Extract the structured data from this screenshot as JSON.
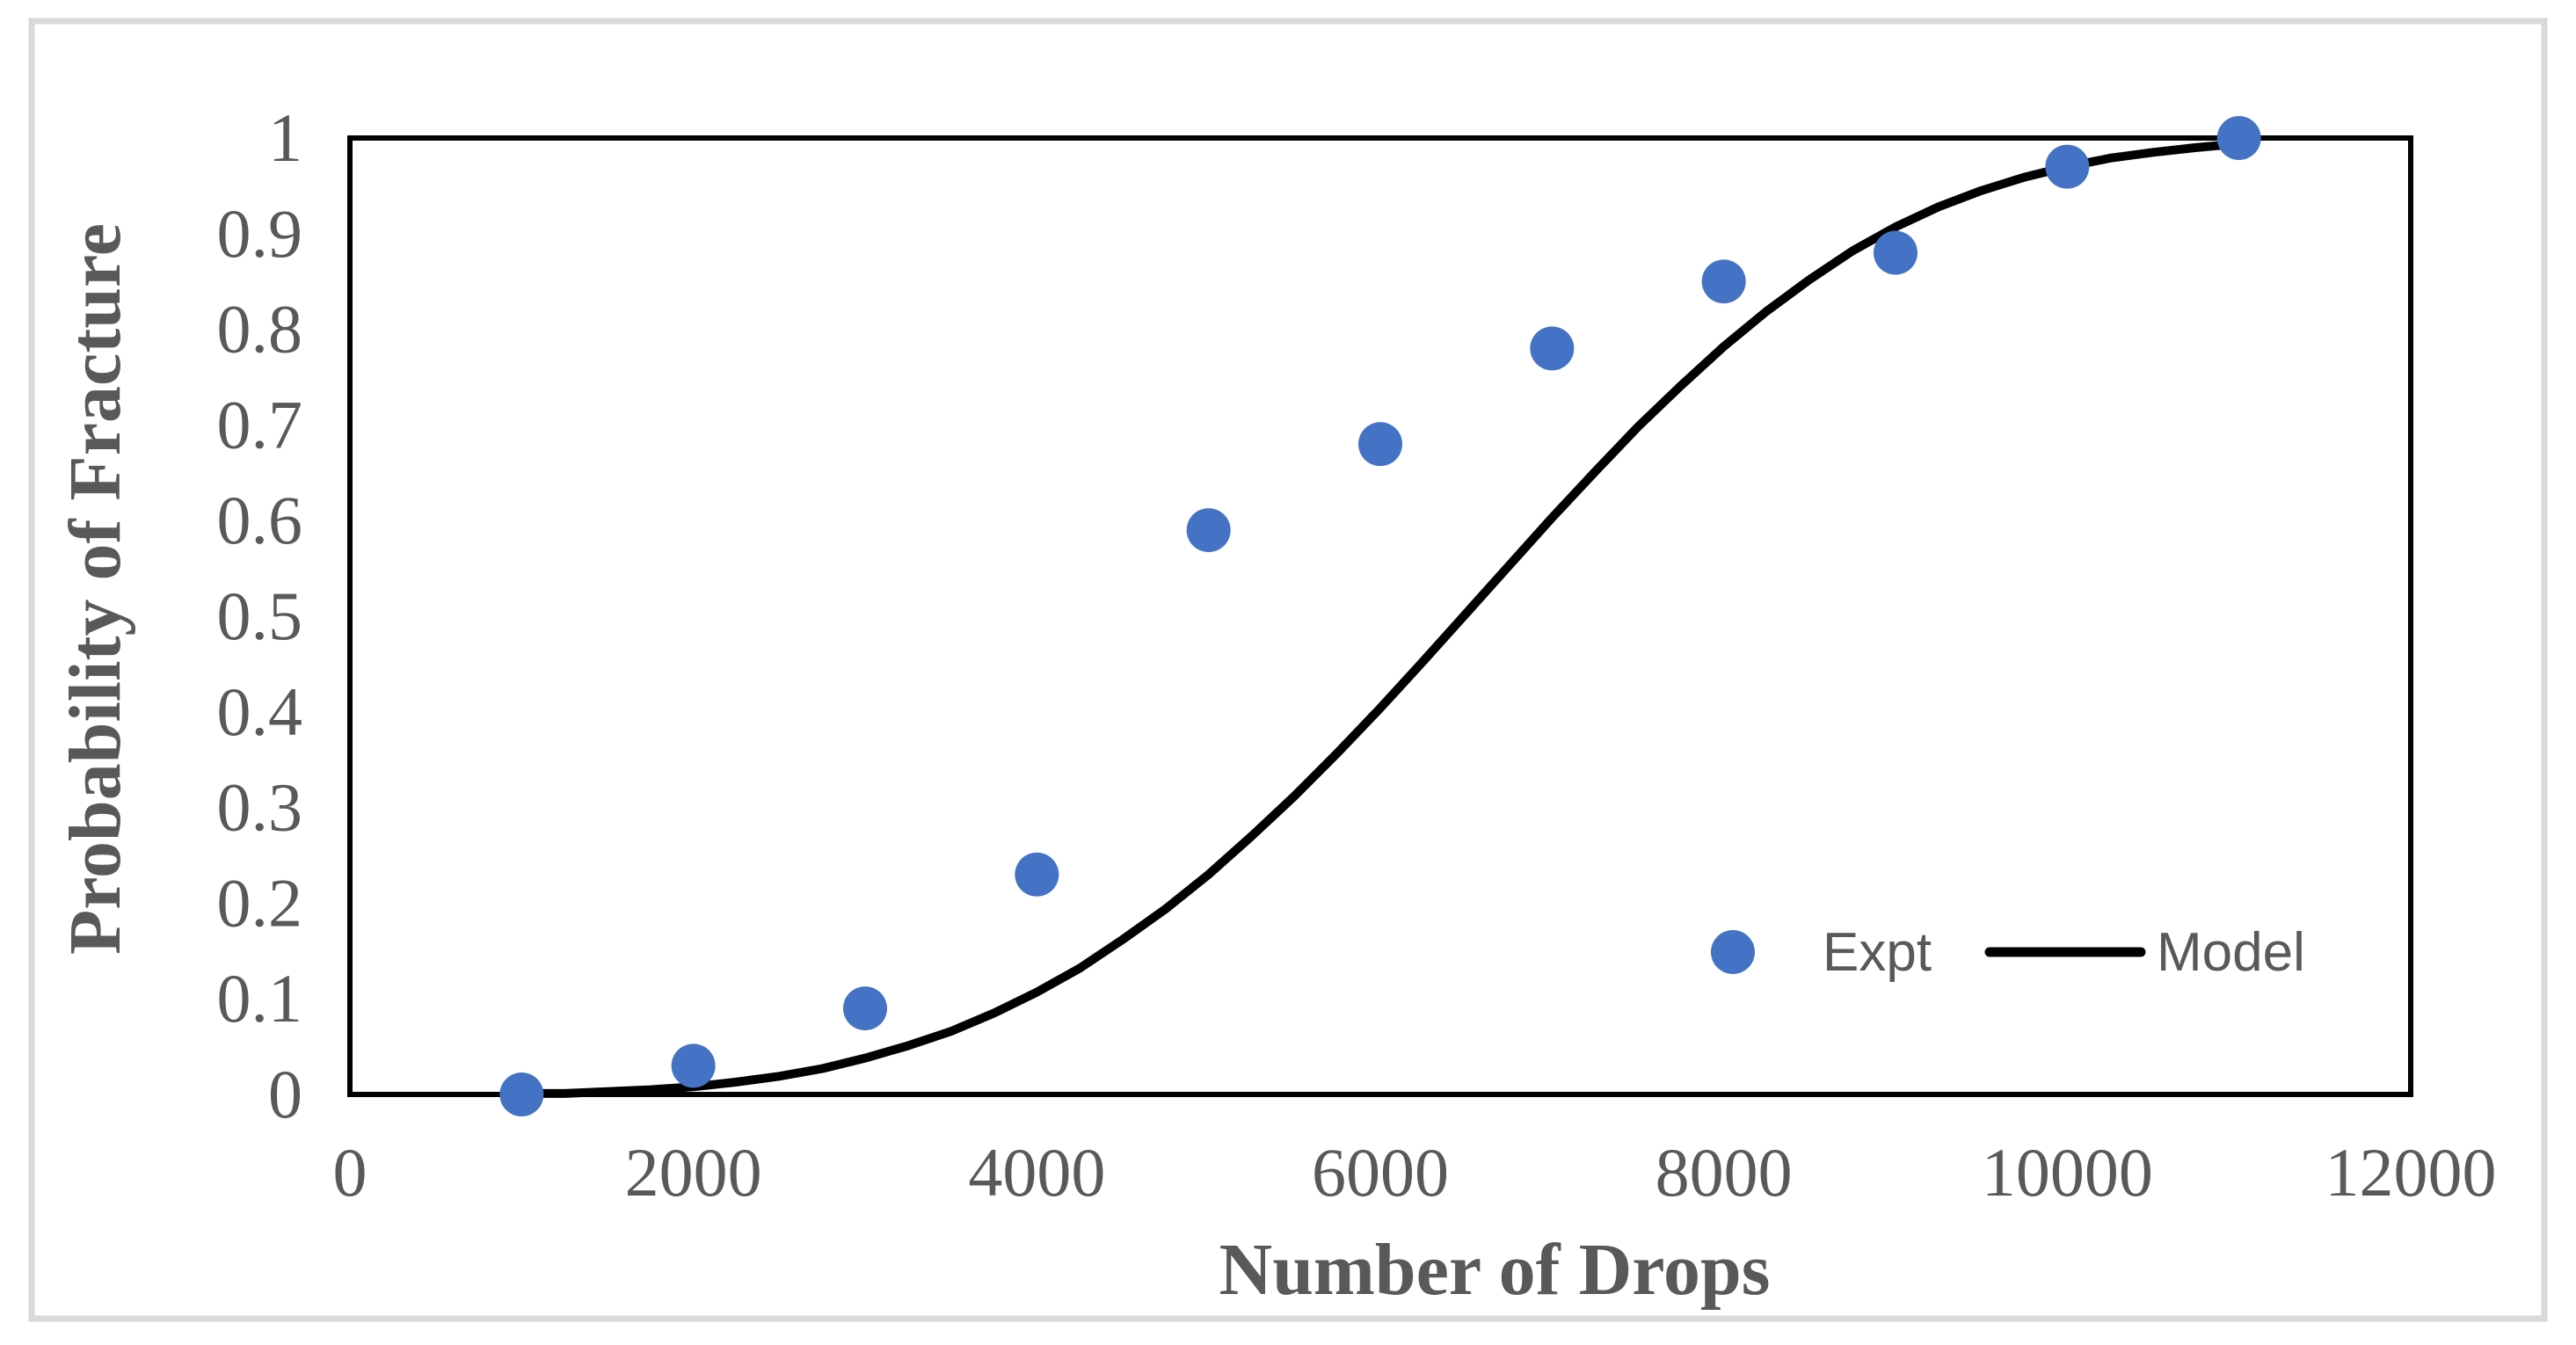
{
  "figure": {
    "background_color": "#FFFFFF",
    "outer_border_color": "#D9D9D9",
    "plot_border_color": "#000000",
    "axis_text_color": "#595959"
  },
  "chart_data": {
    "type": "scatter",
    "title": "",
    "xlabel": "Number of Drops",
    "ylabel": "Probability of Fracture",
    "xlim": [
      0,
      12000
    ],
    "ylim": [
      0,
      1
    ],
    "x_ticks": [
      0,
      2000,
      4000,
      6000,
      8000,
      10000,
      12000
    ],
    "y_ticks": [
      0,
      0.1,
      0.2,
      0.3,
      0.4,
      0.5,
      0.6,
      0.7,
      0.8,
      0.9,
      1
    ],
    "grid": false,
    "legend_position": "inside lower right",
    "series": [
      {
        "name": "Expt",
        "type": "scatter",
        "color": "#4472C4",
        "marker": "circle",
        "x": [
          1000,
          2000,
          3000,
          4000,
          5000,
          6000,
          7000,
          8000,
          9000,
          10000,
          11000
        ],
        "y": [
          0.0,
          0.03,
          0.09,
          0.23,
          0.59,
          0.68,
          0.78,
          0.85,
          0.88,
          0.97,
          1.0
        ]
      },
      {
        "name": "Model",
        "type": "line",
        "color": "#000000",
        "x": [
          1000,
          1250,
          1500,
          1750,
          2000,
          2250,
          2500,
          2750,
          3000,
          3250,
          3500,
          3750,
          4000,
          4250,
          4500,
          4750,
          5000,
          5250,
          5500,
          5750,
          6000,
          6250,
          6500,
          6750,
          7000,
          7250,
          7500,
          7750,
          8000,
          8250,
          8500,
          8750,
          9000,
          9250,
          9500,
          9750,
          10000,
          10250,
          10500,
          10750,
          11000
        ],
        "y": [
          0.001,
          0.001,
          0.003,
          0.005,
          0.008,
          0.013,
          0.019,
          0.027,
          0.038,
          0.051,
          0.066,
          0.085,
          0.107,
          0.132,
          0.162,
          0.194,
          0.23,
          0.27,
          0.312,
          0.357,
          0.404,
          0.453,
          0.503,
          0.553,
          0.603,
          0.651,
          0.698,
          0.741,
          0.782,
          0.819,
          0.852,
          0.882,
          0.907,
          0.928,
          0.945,
          0.959,
          0.97,
          0.979,
          0.985,
          0.99,
          0.994
        ]
      }
    ]
  }
}
